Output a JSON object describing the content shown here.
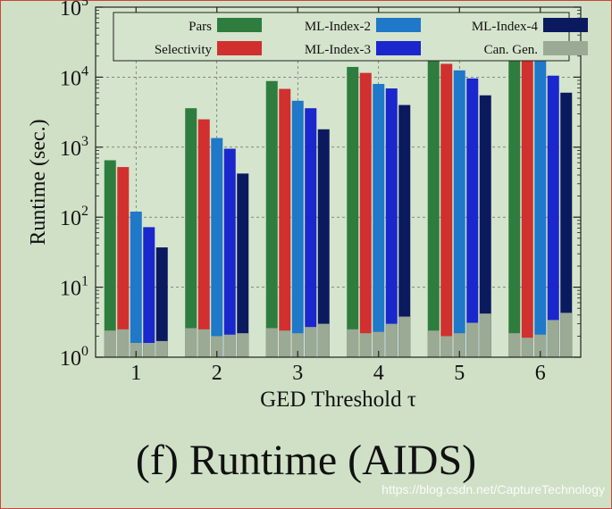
{
  "chart_data": {
    "type": "bar",
    "xlabel": "GED Threshold τ",
    "ylabel": "Runtime (sec.)",
    "yscale": "log",
    "ylim": [
      1,
      100000
    ],
    "grid": "dashed",
    "legend_position": "top",
    "categories": [
      "1",
      "2",
      "3",
      "4",
      "5",
      "6"
    ],
    "y_ticks": [
      {
        "value": 1,
        "base": "10",
        "exp": "0"
      },
      {
        "value": 10,
        "base": "10",
        "exp": "1"
      },
      {
        "value": 100,
        "base": "10",
        "exp": "2"
      },
      {
        "value": 1000,
        "base": "10",
        "exp": "3"
      },
      {
        "value": 10000,
        "base": "10",
        "exp": "4"
      },
      {
        "value": 100000,
        "base": "10",
        "exp": "5"
      }
    ],
    "series": [
      {
        "name": "Pars",
        "color": "#2e7d3e",
        "values": [
          650,
          3600,
          8800,
          14000,
          18000,
          21000
        ]
      },
      {
        "name": "Selectivity",
        "color": "#d0302e",
        "values": [
          520,
          2500,
          6800,
          11500,
          15500,
          20500
        ]
      },
      {
        "name": "ML-Index-2",
        "color": "#1f78c8",
        "values": [
          120,
          1350,
          4600,
          8000,
          12500,
          17000
        ]
      },
      {
        "name": "ML-Index-3",
        "color": "#1a27cc",
        "values": [
          72,
          950,
          3600,
          6900,
          9600,
          10500
        ]
      },
      {
        "name": "ML-Index-4",
        "color": "#0b1a5e",
        "values": [
          37,
          420,
          1800,
          4000,
          5500,
          6000
        ]
      }
    ],
    "overlay_series": {
      "name": "Can. Gen.",
      "color": "#9aaa94",
      "values": [
        [
          2.4,
          2.5,
          1.6,
          1.6,
          1.7
        ],
        [
          2.6,
          2.5,
          2.0,
          2.1,
          2.2
        ],
        [
          2.6,
          2.4,
          2.2,
          2.7,
          3.0
        ],
        [
          2.5,
          2.2,
          2.3,
          3.0,
          3.8
        ],
        [
          2.4,
          2.0,
          2.2,
          3.1,
          4.2
        ],
        [
          2.2,
          1.9,
          2.1,
          3.4,
          4.3
        ]
      ]
    }
  },
  "caption": "(f) Runtime (AIDS)",
  "watermark": "https://blog.csdn.net/CaptureTechnology"
}
